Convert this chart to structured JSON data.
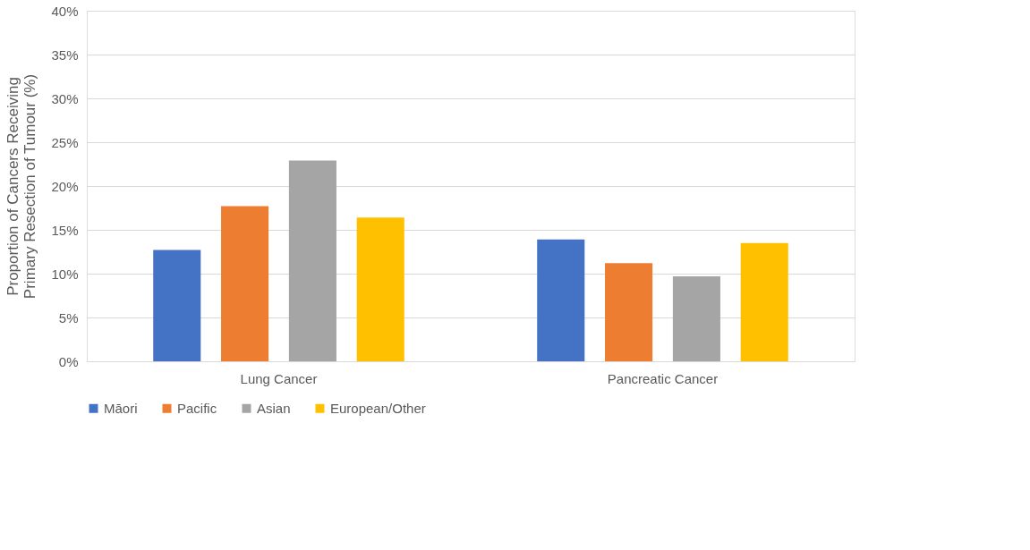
{
  "chart_data": {
    "type": "bar",
    "ylabel": "Proportion of Cancers Receiving\nPrimary Resection of Tumour (%)",
    "categories": [
      "Lung Cancer",
      "Pancreatic Cancer"
    ],
    "series": [
      {
        "name": "Māori",
        "color": "#4472c4",
        "values": [
          12.7,
          13.9
        ]
      },
      {
        "name": "Pacific",
        "color": "#ed7d31",
        "values": [
          17.7,
          11.2
        ]
      },
      {
        "name": "Asian",
        "color": "#a5a5a5",
        "values": [
          22.9,
          9.7
        ]
      },
      {
        "name": "European/Other",
        "color": "#ffc000",
        "values": [
          16.4,
          13.5
        ]
      }
    ],
    "ylim": [
      0,
      40
    ],
    "yticks": [
      {
        "value": 0,
        "label": "0%"
      },
      {
        "value": 5,
        "label": "5%"
      },
      {
        "value": 10,
        "label": "10%"
      },
      {
        "value": 15,
        "label": "15%"
      },
      {
        "value": 20,
        "label": "20%"
      },
      {
        "value": 25,
        "label": "25%"
      },
      {
        "value": 30,
        "label": "30%"
      },
      {
        "value": 35,
        "label": "35%"
      },
      {
        "value": 40,
        "label": "40%"
      }
    ],
    "grid": "y",
    "legend": "bottom"
  }
}
